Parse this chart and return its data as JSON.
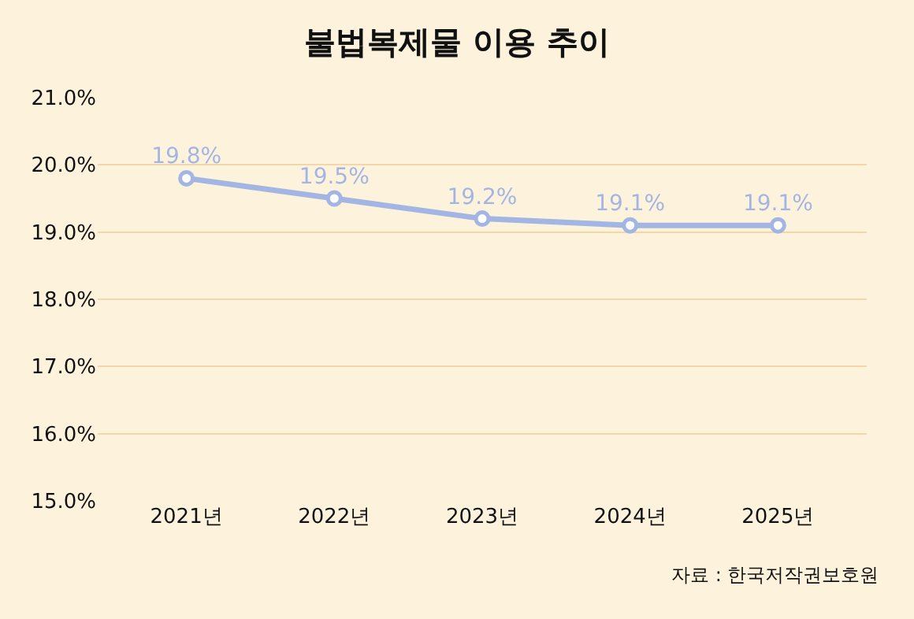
{
  "chart_data": {
    "type": "line",
    "title": "불법복제물 이용 추이",
    "categories": [
      "2021년",
      "2022년",
      "2023년",
      "2024년",
      "2025년"
    ],
    "series": [
      {
        "color": "#a3b5e3",
        "values": [
          19.8,
          19.5,
          19.2,
          19.1,
          19.1
        ]
      }
    ],
    "ylim": [
      15,
      21
    ],
    "yticks": [
      {
        "value": 15,
        "label": "15.0%"
      },
      {
        "value": 16,
        "label": "16.0%"
      },
      {
        "value": 17,
        "label": "17.0%"
      },
      {
        "value": 18,
        "label": "18.0%"
      },
      {
        "value": 19,
        "label": "19.0%"
      },
      {
        "value": 20,
        "label": "20.0%"
      },
      {
        "value": 21,
        "label": "21.0%"
      }
    ],
    "value_labels": [
      "19.8%",
      "19.5%",
      "19.2%",
      "19.1%",
      "19.1%"
    ],
    "grid": "y",
    "marker": "circle",
    "line_style": "solid",
    "annotations": [
      "자료 : 한국저작권보호원"
    ]
  }
}
